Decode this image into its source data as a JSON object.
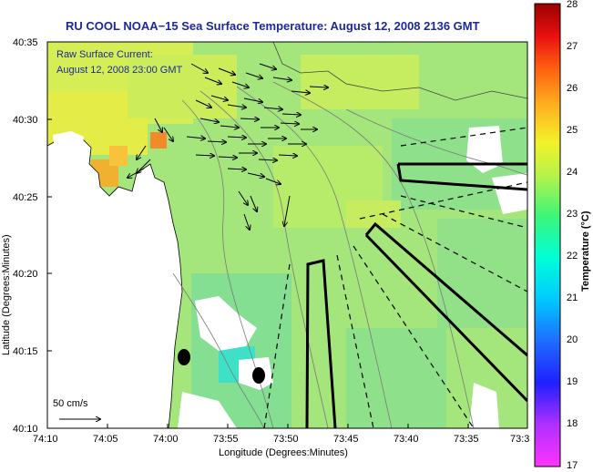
{
  "title": "RU COOL  NOAA−15  Sea Surface Temperature:  August 12, 2008 2136 GMT",
  "legend": {
    "line1": "Raw Surface Current:",
    "line2": "August 12, 2008 23:00 GMT"
  },
  "scale_label": "50 cm/s",
  "axes": {
    "xlabel": "Longitude (Degrees:Minutes)",
    "ylabel": "Latitude (Degrees:Minutes)",
    "xticks": [
      "74:10",
      "74:05",
      "74:00",
      "73:55",
      "73:50",
      "73:45",
      "73:40",
      "73:35",
      "73:3"
    ],
    "yticks": [
      "40:35",
      "40:30",
      "40:25",
      "40:20",
      "40:15",
      "40:10"
    ]
  },
  "colorbar": {
    "label": "Temperature (°C)",
    "min": 17,
    "max": 28,
    "ticks": [
      "28",
      "27",
      "26",
      "25",
      "24",
      "23",
      "22",
      "21",
      "20",
      "19",
      "18",
      "17"
    ]
  },
  "colors": {
    "title": "#1a2a9c",
    "sea_base": "#9fe27a",
    "land": "#ffffff"
  }
}
